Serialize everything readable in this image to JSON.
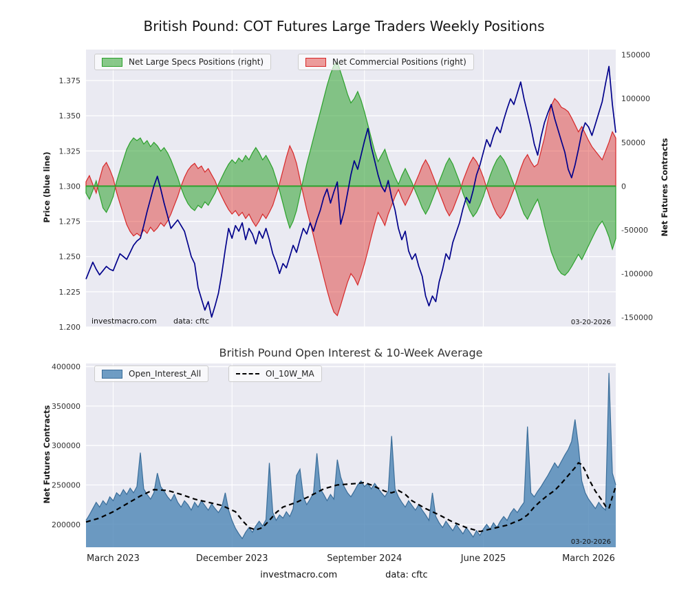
{
  "page": {
    "title": "British Pound: COT Futures Large Traders Weekly Positions",
    "footer": {
      "site": "investmacro.com",
      "source": "data: cftc"
    }
  },
  "colors": {
    "plot_bg": "#eaeaf2",
    "grid": "#ffffff",
    "tick_text": "#333333",
    "price_line": "#00008b",
    "specs_fill": "rgba(44,160,44,0.55)",
    "specs_edge": "#2ca02c",
    "comm_fill": "rgba(222,45,38,0.45)",
    "comm_edge": "#d62728",
    "zero_line": "#2ca02c",
    "oi_fill": "rgba(70,130,180,0.78)",
    "oi_edge": "#3a6d99",
    "ma_line": "#000000"
  },
  "chart_data": [
    {
      "type": "area",
      "title": "British Pound: COT Futures Large Traders Weekly Positions",
      "ylabel_left": "Price (blue line)",
      "ylabel_right": "Net Futures Contracts",
      "legend": [
        {
          "label": "Net Large Specs Positions (right)"
        },
        {
          "label": "Net Commercial Positions (right)"
        }
      ],
      "annotations": {
        "site": "investmacro.com",
        "source": "data: cftc",
        "date": "03-20-2026"
      },
      "weeks": 157,
      "x_range": [
        "March 2023",
        "March 2026"
      ],
      "x_tick_weeks": [
        8,
        43,
        82,
        117,
        148
      ],
      "left_axis": {
        "min": 1.2,
        "max": 1.397,
        "tick_values": [
          1.2,
          1.225,
          1.25,
          1.275,
          1.3,
          1.325,
          1.35,
          1.375
        ],
        "tick_labels": [
          "1.200",
          "1.225",
          "1.250",
          "1.275",
          "1.300",
          "1.325",
          "1.350",
          "1.375"
        ]
      },
      "right_axis": {
        "min": -161000,
        "max": 156000,
        "tick_values": [
          150000,
          100000,
          50000,
          0,
          -50000,
          -100000,
          -150000
        ],
        "tick_labels": [
          "150000",
          "100000",
          "50000",
          "0",
          "-50000",
          "-100000",
          "-150000"
        ]
      },
      "series": {
        "price": [
          1.234,
          1.24,
          1.246,
          1.241,
          1.237,
          1.24,
          1.243,
          1.241,
          1.24,
          1.246,
          1.252,
          1.25,
          1.248,
          1.253,
          1.258,
          1.261,
          1.263,
          1.272,
          1.282,
          1.291,
          1.3,
          1.307,
          1.298,
          1.288,
          1.279,
          1.27,
          1.273,
          1.276,
          1.272,
          1.268,
          1.259,
          1.25,
          1.245,
          1.228,
          1.22,
          1.212,
          1.218,
          1.207,
          1.215,
          1.224,
          1.238,
          1.255,
          1.27,
          1.263,
          1.272,
          1.268,
          1.274,
          1.262,
          1.27,
          1.266,
          1.259,
          1.268,
          1.263,
          1.27,
          1.262,
          1.252,
          1.246,
          1.238,
          1.245,
          1.242,
          1.25,
          1.258,
          1.253,
          1.262,
          1.27,
          1.266,
          1.274,
          1.268,
          1.276,
          1.283,
          1.292,
          1.298,
          1.288,
          1.296,
          1.303,
          1.273,
          1.282,
          1.295,
          1.308,
          1.318,
          1.312,
          1.322,
          1.332,
          1.341,
          1.328,
          1.318,
          1.308,
          1.3,
          1.296,
          1.304,
          1.292,
          1.283,
          1.27,
          1.262,
          1.268,
          1.254,
          1.248,
          1.252,
          1.243,
          1.236,
          1.222,
          1.215,
          1.222,
          1.218,
          1.232,
          1.241,
          1.252,
          1.248,
          1.26,
          1.267,
          1.274,
          1.284,
          1.292,
          1.288,
          1.297,
          1.308,
          1.315,
          1.324,
          1.333,
          1.328,
          1.336,
          1.342,
          1.338,
          1.347,
          1.355,
          1.362,
          1.358,
          1.366,
          1.374,
          1.362,
          1.352,
          1.342,
          1.33,
          1.322,
          1.335,
          1.345,
          1.352,
          1.358,
          1.348,
          1.34,
          1.332,
          1.324,
          1.312,
          1.306,
          1.315,
          1.326,
          1.338,
          1.345,
          1.342,
          1.336,
          1.344,
          1.352,
          1.36,
          1.373,
          1.385,
          1.358,
          1.338
        ],
        "net_large_specs": [
          -8000,
          -15000,
          -5000,
          6000,
          -10000,
          -25000,
          -30000,
          -22000,
          -12000,
          5000,
          18000,
          30000,
          42000,
          50000,
          55000,
          52000,
          55000,
          48000,
          52000,
          45000,
          50000,
          46000,
          40000,
          44000,
          38000,
          30000,
          20000,
          10000,
          -2000,
          -12000,
          -20000,
          -25000,
          -28000,
          -22000,
          -25000,
          -18000,
          -22000,
          -15000,
          -8000,
          2000,
          10000,
          18000,
          25000,
          30000,
          26000,
          32000,
          28000,
          35000,
          30000,
          38000,
          44000,
          38000,
          30000,
          35000,
          28000,
          20000,
          8000,
          -5000,
          -20000,
          -35000,
          -48000,
          -40000,
          -28000,
          -10000,
          8000,
          25000,
          40000,
          55000,
          70000,
          85000,
          100000,
          115000,
          128000,
          138000,
          142000,
          130000,
          118000,
          105000,
          95000,
          100000,
          108000,
          98000,
          85000,
          70000,
          55000,
          40000,
          28000,
          35000,
          42000,
          30000,
          20000,
          10000,
          2000,
          12000,
          20000,
          12000,
          4000,
          -6000,
          -15000,
          -25000,
          -32000,
          -25000,
          -15000,
          -5000,
          5000,
          15000,
          25000,
          32000,
          25000,
          15000,
          5000,
          -8000,
          -18000,
          -28000,
          -35000,
          -30000,
          -22000,
          -12000,
          0,
          12000,
          22000,
          30000,
          35000,
          30000,
          22000,
          12000,
          2000,
          -10000,
          -22000,
          -32000,
          -38000,
          -30000,
          -22000,
          -15000,
          -28000,
          -45000,
          -60000,
          -75000,
          -85000,
          -95000,
          -100000,
          -102000,
          -98000,
          -92000,
          -85000,
          -78000,
          -84000,
          -76000,
          -68000,
          -60000,
          -52000,
          -45000,
          -40000,
          -48000,
          -58000,
          -72000,
          -60000
        ],
        "net_commercial": [
          5000,
          12000,
          2000,
          -8000,
          8000,
          22000,
          27000,
          19000,
          9000,
          -7000,
          -20000,
          -32000,
          -44000,
          -52000,
          -57000,
          -54000,
          -57000,
          -50000,
          -54000,
          -47000,
          -52000,
          -48000,
          -42000,
          -46000,
          -40000,
          -32000,
          -22000,
          -12000,
          0,
          10000,
          18000,
          23000,
          26000,
          20000,
          23000,
          16000,
          20000,
          13000,
          6000,
          -4000,
          -12000,
          -20000,
          -27000,
          -32000,
          -28000,
          -34000,
          -30000,
          -37000,
          -32000,
          -40000,
          -46000,
          -40000,
          -32000,
          -37000,
          -30000,
          -22000,
          -10000,
          3000,
          18000,
          33000,
          46000,
          38000,
          26000,
          8000,
          -10000,
          -27000,
          -42000,
          -57000,
          -73000,
          -88000,
          -104000,
          -119000,
          -133000,
          -144000,
          -148000,
          -136000,
          -123000,
          -110000,
          -100000,
          -105000,
          -113000,
          -102000,
          -89000,
          -74000,
          -58000,
          -43000,
          -30000,
          -37000,
          -45000,
          -32000,
          -22000,
          -12000,
          -4000,
          -14000,
          -22000,
          -14000,
          -6000,
          4000,
          13000,
          23000,
          30000,
          23000,
          13000,
          3000,
          -7000,
          -17000,
          -27000,
          -34000,
          -27000,
          -17000,
          -7000,
          6000,
          16000,
          26000,
          33000,
          28000,
          20000,
          10000,
          -2000,
          -14000,
          -24000,
          -32000,
          -37000,
          -32000,
          -24000,
          -14000,
          -4000,
          8000,
          20000,
          30000,
          36000,
          28000,
          22000,
          25000,
          40000,
          55000,
          75000,
          92000,
          100000,
          96000,
          90000,
          88000,
          85000,
          78000,
          70000,
          62000,
          68000,
          60000,
          52000,
          45000,
          40000,
          35000,
          30000,
          40000,
          50000,
          62000,
          55000
        ]
      }
    },
    {
      "type": "area+line",
      "title": "British Pound Open Interest & 10-Week Average",
      "ylabel": "Net Futures Contracts",
      "legend": [
        {
          "label": "Open_Interest_All"
        },
        {
          "label": "OI_10W_MA"
        }
      ],
      "annotations": {
        "date": "03-20-2026"
      },
      "weeks": 157,
      "x_tick_weeks": [
        8,
        43,
        82,
        117,
        148
      ],
      "x_tick_labels": [
        "March 2023",
        "December 2023",
        "September 2024",
        "June 2025",
        "March 2026"
      ],
      "y_axis": {
        "min": 171000,
        "max": 404000,
        "tick_values": [
          200000,
          250000,
          300000,
          350000,
          400000
        ],
        "tick_labels": [
          "200000",
          "250000",
          "300000",
          "350000",
          "400000"
        ]
      },
      "series": {
        "open_interest": [
          205000,
          212000,
          220000,
          228000,
          222000,
          230000,
          225000,
          235000,
          230000,
          240000,
          236000,
          244000,
          238000,
          246000,
          240000,
          248000,
          291000,
          245000,
          238000,
          232000,
          240000,
          265000,
          248000,
          242000,
          235000,
          230000,
          238000,
          228000,
          222000,
          230000,
          225000,
          218000,
          228000,
          222000,
          230000,
          224000,
          218000,
          226000,
          220000,
          215000,
          222000,
          240000,
          218000,
          205000,
          195000,
          188000,
          182000,
          190000,
          196000,
          190000,
          198000,
          204000,
          198000,
          206000,
          278000,
          215000,
          205000,
          212000,
          208000,
          216000,
          210000,
          220000,
          262000,
          270000,
          235000,
          225000,
          232000,
          240000,
          290000,
          245000,
          238000,
          230000,
          238000,
          232000,
          282000,
          260000,
          248000,
          240000,
          235000,
          242000,
          250000,
          255000,
          248000,
          252000,
          245000,
          252000,
          246000,
          240000,
          235000,
          242000,
          312000,
          245000,
          235000,
          228000,
          222000,
          230000,
          224000,
          218000,
          225000,
          218000,
          212000,
          205000,
          240000,
          210000,
          202000,
          196000,
          204000,
          198000,
          192000,
          200000,
          194000,
          188000,
          196000,
          190000,
          184000,
          192000,
          186000,
          194000,
          200000,
          194000,
          202000,
          196000,
          204000,
          210000,
          205000,
          214000,
          220000,
          215000,
          222000,
          228000,
          324000,
          240000,
          235000,
          242000,
          248000,
          255000,
          262000,
          270000,
          278000,
          272000,
          280000,
          288000,
          295000,
          305000,
          333000,
          300000,
          255000,
          240000,
          232000,
          226000,
          220000,
          228000,
          222000,
          218000,
          392000,
          265000,
          250000
        ],
        "oi_10w_ma_keypoints": [
          [
            0,
            203000
          ],
          [
            4,
            208000
          ],
          [
            8,
            216000
          ],
          [
            12,
            226000
          ],
          [
            16,
            236000
          ],
          [
            20,
            244000
          ],
          [
            24,
            243000
          ],
          [
            28,
            238000
          ],
          [
            32,
            232000
          ],
          [
            36,
            228000
          ],
          [
            40,
            224000
          ],
          [
            44,
            216000
          ],
          [
            46,
            205000
          ],
          [
            48,
            196000
          ],
          [
            50,
            193000
          ],
          [
            52,
            196000
          ],
          [
            54,
            205000
          ],
          [
            56,
            215000
          ],
          [
            58,
            222000
          ],
          [
            62,
            228000
          ],
          [
            66,
            236000
          ],
          [
            70,
            245000
          ],
          [
            74,
            250000
          ],
          [
            80,
            252000
          ],
          [
            82,
            253000
          ],
          [
            84,
            250000
          ],
          [
            86,
            246000
          ],
          [
            88,
            242000
          ],
          [
            90,
            240000
          ],
          [
            92,
            243000
          ],
          [
            94,
            238000
          ],
          [
            96,
            230000
          ],
          [
            100,
            220000
          ],
          [
            104,
            212000
          ],
          [
            108,
            203000
          ],
          [
            112,
            196000
          ],
          [
            116,
            191000
          ],
          [
            120,
            195000
          ],
          [
            124,
            199000
          ],
          [
            128,
            206000
          ],
          [
            130,
            212000
          ],
          [
            132,
            222000
          ],
          [
            134,
            230000
          ],
          [
            136,
            237000
          ],
          [
            138,
            243000
          ],
          [
            140,
            252000
          ],
          [
            142,
            262000
          ],
          [
            144,
            272000
          ],
          [
            145,
            278000
          ],
          [
            146,
            276000
          ],
          [
            147,
            268000
          ],
          [
            148,
            258000
          ],
          [
            150,
            242000
          ],
          [
            152,
            230000
          ],
          [
            153,
            223000
          ],
          [
            154,
            220000
          ],
          [
            155,
            235000
          ],
          [
            156,
            248000
          ]
        ]
      }
    }
  ]
}
